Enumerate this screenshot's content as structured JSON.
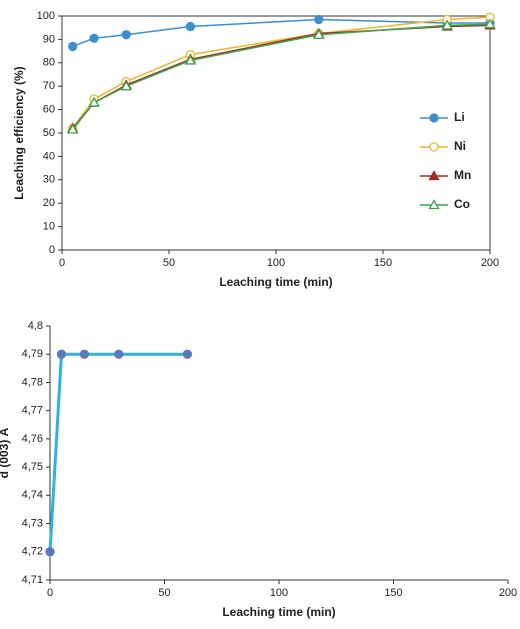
{
  "chart_data": [
    {
      "type": "line",
      "xlabel": "Leaching time (min)",
      "ylabel": "Leaching efficiency (%)",
      "x": [
        5,
        15,
        30,
        60,
        120,
        180,
        200
      ],
      "series": [
        {
          "name": "Li",
          "color": "#3b8fd0",
          "marker": "circle",
          "filled": true,
          "values": [
            87,
            90.5,
            92,
            95.5,
            98.5,
            97,
            97
          ]
        },
        {
          "name": "Ni",
          "color": "#f0b429",
          "marker": "circle",
          "filled": false,
          "values": [
            52,
            64.5,
            72,
            83.5,
            92.5,
            98.5,
            99.5
          ]
        },
        {
          "name": "Mn",
          "color": "#a52a2a",
          "marker": "triangle",
          "filled": true,
          "values": [
            52,
            63,
            70.5,
            81.5,
            92.5,
            95.5,
            96
          ]
        },
        {
          "name": "Co",
          "color": "#3aa64a",
          "marker": "triangle",
          "filled": false,
          "values": [
            51.5,
            63,
            70,
            81,
            92,
            96,
            96.5
          ]
        }
      ],
      "xlim": [
        0,
        200
      ],
      "xticks": [
        0,
        50,
        100,
        150,
        200
      ],
      "ylim": [
        0,
        100
      ],
      "yticks": [
        0,
        10,
        20,
        30,
        40,
        50,
        60,
        70,
        80,
        90,
        100
      ],
      "legend": "right"
    },
    {
      "type": "line",
      "xlabel": "Leaching time (min)",
      "ylabel": "d (003) Å",
      "x": [
        0,
        5,
        15,
        30,
        60
      ],
      "series": [
        {
          "color": "#2fb0e6",
          "marker_color": "#5a78c0",
          "marker": "circle",
          "filled": true,
          "values": [
            4.72,
            4.79,
            4.79,
            4.79,
            4.79
          ]
        }
      ],
      "xlim": [
        0,
        200
      ],
      "xticks": [
        0,
        50,
        100,
        150,
        200
      ],
      "ylim": [
        4.71,
        4.8
      ],
      "yticks": [
        {
          "value": 4.71,
          "label": "4,71"
        },
        {
          "value": 4.72,
          "label": "4,72"
        },
        {
          "value": 4.73,
          "label": "4,73"
        },
        {
          "value": 4.74,
          "label": "4,74"
        },
        {
          "value": 4.75,
          "label": "4,75"
        },
        {
          "value": 4.76,
          "label": "4,76"
        },
        {
          "value": 4.77,
          "label": "4,77"
        },
        {
          "value": 4.78,
          "label": "4,78"
        },
        {
          "value": 4.79,
          "label": "4,79"
        },
        {
          "value": 4.8,
          "label": "4,8"
        }
      ]
    }
  ]
}
